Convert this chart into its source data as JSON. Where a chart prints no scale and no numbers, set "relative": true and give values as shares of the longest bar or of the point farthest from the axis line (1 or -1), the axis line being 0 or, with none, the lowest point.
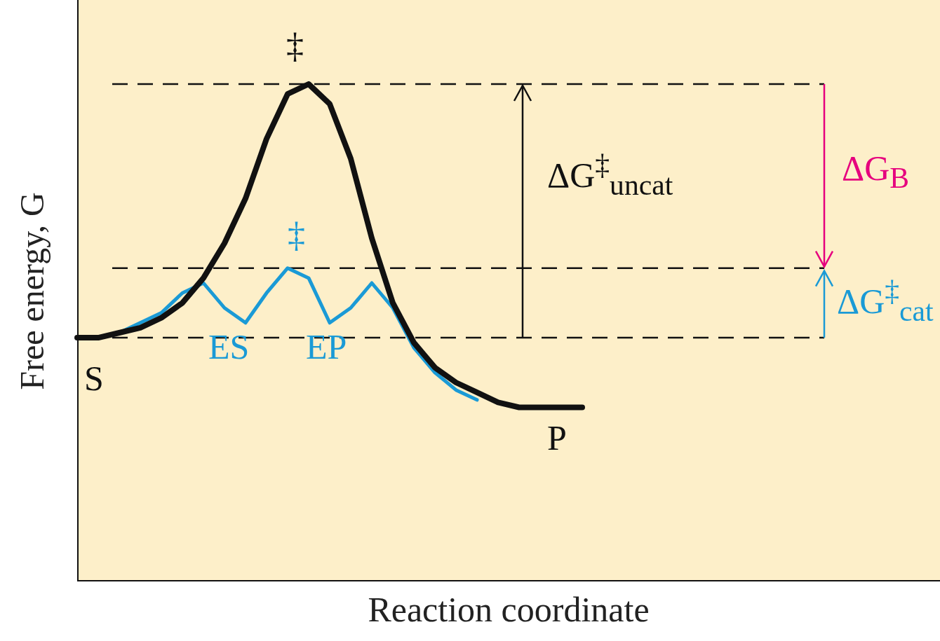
{
  "chart_data": {
    "type": "line",
    "relative": true,
    "xlabel": "Reaction coordinate",
    "ylabel": "Free energy, G",
    "categories": [
      null,
      null,
      null,
      null,
      null,
      null,
      null,
      null,
      null,
      null,
      null,
      null,
      null,
      null,
      null,
      null,
      null,
      null,
      null,
      null,
      null,
      null,
      null,
      null,
      null
    ],
    "series": [
      {
        "color": "#111111",
        "values": [
          0.49,
          0.49,
          0.5,
          0.51,
          0.53,
          0.56,
          0.61,
          0.68,
          0.77,
          0.89,
          0.98,
          1.0,
          0.96,
          0.85,
          0.69,
          0.56,
          0.48,
          0.43,
          0.4,
          0.38,
          0.36,
          0.35,
          0.35,
          0.35,
          0.35
        ]
      },
      {
        "color": "#1a9ad6",
        "values": [
          null,
          null,
          0.5,
          0.52,
          0.54,
          0.58,
          0.6,
          0.55,
          0.52,
          0.58,
          0.63,
          0.61,
          0.52,
          0.55,
          0.6,
          0.55,
          0.47,
          0.42,
          0.385,
          0.365,
          null,
          null,
          null,
          null,
          null
        ]
      }
    ],
    "ref_lines": [
      {
        "axis": "y",
        "value": 1.0,
        "line_style": "dashed"
      },
      {
        "axis": "y",
        "value": 0.63,
        "line_style": "dashed"
      },
      {
        "axis": "y",
        "value": 0.49,
        "line_style": "dashed"
      }
    ],
    "annotations": [
      "‡",
      "‡",
      "ΔG$^{‡}$$_{uncat}$",
      "ΔG$_{B}$",
      "ΔG$^{‡}$$_{cat}$",
      "S",
      "P",
      "ES",
      "EP"
    ],
    "marker": "none",
    "line_style": "solid"
  }
}
